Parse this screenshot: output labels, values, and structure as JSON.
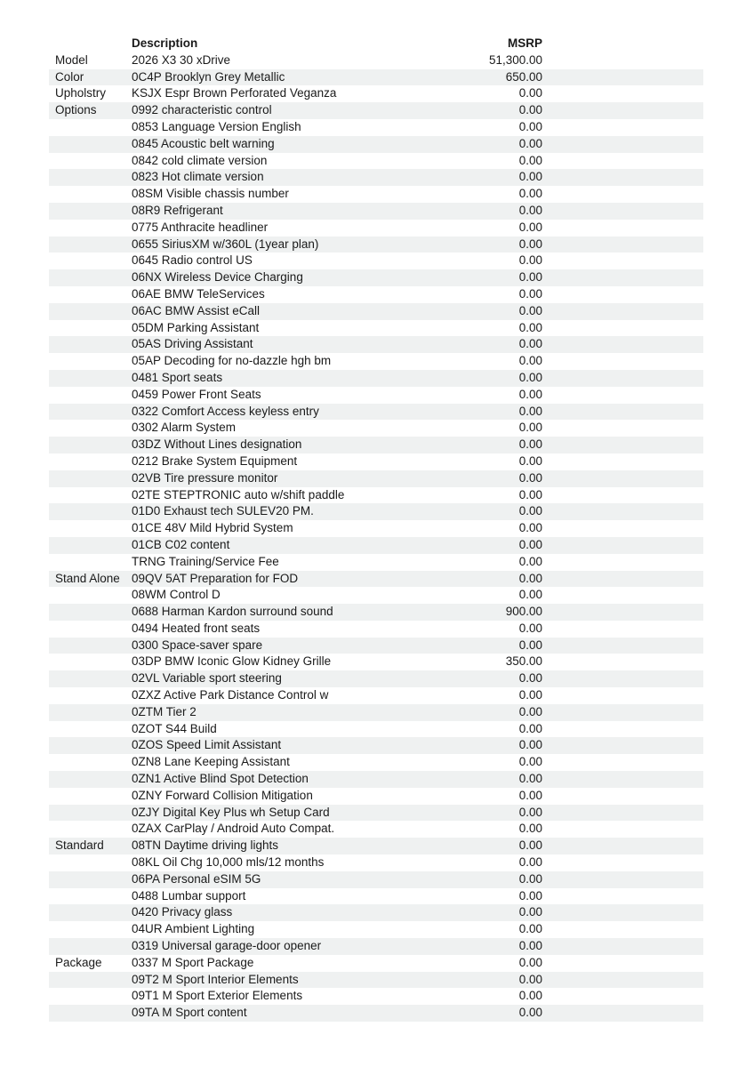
{
  "table": {
    "stripe_color": "#eff1f1",
    "headers": {
      "category": "",
      "description": "Description",
      "msrp": "MSRP"
    },
    "rows": [
      {
        "category": "Model",
        "description": "2026 X3 30 xDrive",
        "msrp": "51,300.00"
      },
      {
        "category": "Color",
        "description": "0C4P Brooklyn Grey Metallic",
        "msrp": "650.00"
      },
      {
        "category": "Upholstry",
        "description": "KSJX Espr Brown Perforated Veganza",
        "msrp": "0.00"
      },
      {
        "category": "Options",
        "description": "0992 characteristic control",
        "msrp": "0.00"
      },
      {
        "category": "",
        "description": "0853 Language Version English",
        "msrp": "0.00"
      },
      {
        "category": "",
        "description": "0845 Acoustic belt warning",
        "msrp": "0.00"
      },
      {
        "category": "",
        "description": "0842 cold climate version",
        "msrp": "0.00"
      },
      {
        "category": "",
        "description": "0823 Hot climate version",
        "msrp": "0.00"
      },
      {
        "category": "",
        "description": "08SM Visible chassis number",
        "msrp": "0.00"
      },
      {
        "category": "",
        "description": "08R9 Refrigerant",
        "msrp": "0.00"
      },
      {
        "category": "",
        "description": "0775 Anthracite headliner",
        "msrp": "0.00"
      },
      {
        "category": "",
        "description": "0655 SiriusXM w/360L (1year plan)",
        "msrp": "0.00"
      },
      {
        "category": "",
        "description": "0645 Radio control US",
        "msrp": "0.00"
      },
      {
        "category": "",
        "description": "06NX Wireless Device Charging",
        "msrp": "0.00"
      },
      {
        "category": "",
        "description": "06AE BMW TeleServices",
        "msrp": "0.00"
      },
      {
        "category": "",
        "description": "06AC BMW Assist eCall",
        "msrp": "0.00"
      },
      {
        "category": "",
        "description": "05DM Parking Assistant",
        "msrp": "0.00"
      },
      {
        "category": "",
        "description": "05AS Driving Assistant",
        "msrp": "0.00"
      },
      {
        "category": "",
        "description": "05AP Decoding for no-dazzle hgh bm",
        "msrp": "0.00"
      },
      {
        "category": "",
        "description": "0481 Sport seats",
        "msrp": "0.00"
      },
      {
        "category": "",
        "description": "0459 Power Front Seats",
        "msrp": "0.00"
      },
      {
        "category": "",
        "description": "0322 Comfort Access keyless entry",
        "msrp": "0.00"
      },
      {
        "category": "",
        "description": "0302 Alarm System",
        "msrp": "0.00"
      },
      {
        "category": "",
        "description": "03DZ Without Lines designation",
        "msrp": "0.00"
      },
      {
        "category": "",
        "description": "0212 Brake System Equipment",
        "msrp": "0.00"
      },
      {
        "category": "",
        "description": "02VB Tire pressure monitor",
        "msrp": "0.00"
      },
      {
        "category": "",
        "description": "02TE STEPTRONIC auto w/shift paddle",
        "msrp": "0.00"
      },
      {
        "category": "",
        "description": "01D0 Exhaust tech SULEV20 PM.",
        "msrp": "0.00"
      },
      {
        "category": "",
        "description": "01CE 48V Mild Hybrid System",
        "msrp": "0.00"
      },
      {
        "category": "",
        "description": "01CB C02 content",
        "msrp": "0.00"
      },
      {
        "category": "",
        "description": "TRNG Training/Service Fee",
        "msrp": "0.00"
      },
      {
        "category": "Stand Alone",
        "description": "09QV 5AT Preparation for FOD",
        "msrp": "0.00"
      },
      {
        "category": "",
        "description": "08WM Control D",
        "msrp": "0.00"
      },
      {
        "category": "",
        "description": "0688 Harman Kardon surround sound",
        "msrp": "900.00"
      },
      {
        "category": "",
        "description": "0494 Heated front seats",
        "msrp": "0.00"
      },
      {
        "category": "",
        "description": "0300 Space-saver spare",
        "msrp": "0.00"
      },
      {
        "category": "",
        "description": "03DP BMW Iconic Glow Kidney Grille",
        "msrp": "350.00"
      },
      {
        "category": "",
        "description": "02VL Variable sport steering",
        "msrp": "0.00"
      },
      {
        "category": "",
        "description": "0ZXZ Active Park Distance Control w",
        "msrp": "0.00"
      },
      {
        "category": "",
        "description": "0ZTM Tier 2",
        "msrp": "0.00"
      },
      {
        "category": "",
        "description": "0ZOT S44 Build",
        "msrp": "0.00"
      },
      {
        "category": "",
        "description": "0ZOS Speed Limit Assistant",
        "msrp": "0.00"
      },
      {
        "category": "",
        "description": "0ZN8 Lane Keeping Assistant",
        "msrp": "0.00"
      },
      {
        "category": "",
        "description": "0ZN1 Active Blind Spot Detection",
        "msrp": "0.00"
      },
      {
        "category": "",
        "description": "0ZNY Forward Collision Mitigation",
        "msrp": "0.00"
      },
      {
        "category": "",
        "description": "0ZJY Digital Key Plus wh Setup Card",
        "msrp": "0.00"
      },
      {
        "category": "",
        "description": "0ZAX CarPlay / Android Auto Compat.",
        "msrp": "0.00"
      },
      {
        "category": "Standard",
        "description": "08TN Daytime driving lights",
        "msrp": "0.00"
      },
      {
        "category": "",
        "description": "08KL Oil Chg 10,000 mls/12 months",
        "msrp": "0.00"
      },
      {
        "category": "",
        "description": "06PA Personal eSIM 5G",
        "msrp": "0.00"
      },
      {
        "category": "",
        "description": "0488 Lumbar support",
        "msrp": "0.00"
      },
      {
        "category": "",
        "description": "0420 Privacy glass",
        "msrp": "0.00"
      },
      {
        "category": "",
        "description": "04UR Ambient Lighting",
        "msrp": "0.00"
      },
      {
        "category": "",
        "description": "0319 Universal garage-door opener",
        "msrp": "0.00"
      },
      {
        "category": "Package",
        "description": "0337 M Sport Package",
        "msrp": "0.00"
      },
      {
        "category": "",
        "description": "09T2 M Sport Interior Elements",
        "msrp": "0.00"
      },
      {
        "category": "",
        "description": "09T1 M Sport Exterior Elements",
        "msrp": "0.00"
      },
      {
        "category": "",
        "description": "09TA M Sport content",
        "msrp": "0.00"
      }
    ]
  }
}
